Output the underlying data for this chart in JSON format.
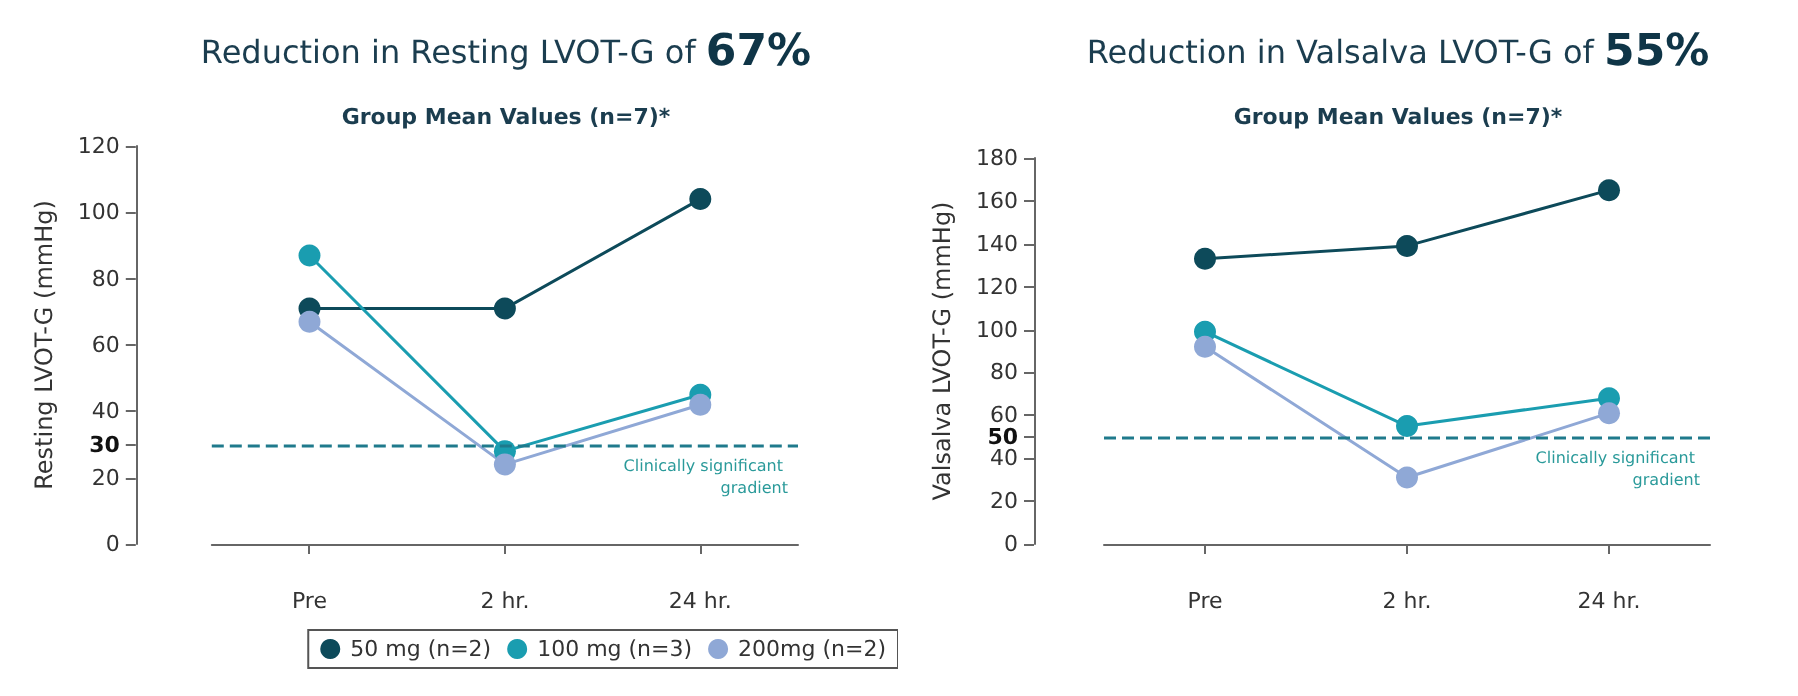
{
  "chart_data": [
    {
      "type": "line",
      "title": "Reduction in Resting LVOT-G of 67%",
      "subtitle": "Group Mean Values (n=7)*",
      "ylabel": "Resting LVOT-G (mmHg)",
      "categories": [
        "Pre",
        "2 hr.",
        "24 hr."
      ],
      "series": [
        {
          "name": "50 mg (n=2)",
          "color": "#0d4a5a",
          "values": [
            71,
            71,
            104
          ]
        },
        {
          "name": "100 mg (n=3)",
          "color": "#1a9db0",
          "values": [
            87,
            28,
            45
          ]
        },
        {
          "name": "200mg (n=2)",
          "color": "#8fa8d6",
          "values": [
            67,
            24,
            42
          ]
        }
      ],
      "ylim": [
        0,
        120
      ],
      "yticks": [
        0,
        20,
        30,
        40,
        60,
        80,
        100,
        120
      ],
      "ref_lines": [
        {
          "axis": "y",
          "value": 30,
          "label": "Clinically significant gradient",
          "color": "#1f7a8c",
          "line_style": "dashed"
        }
      ],
      "marker": "circle",
      "line_style": "solid",
      "grid": false,
      "legend": "bottom"
    },
    {
      "type": "line",
      "title": "Reduction in Valsalva LVOT-G of 55%",
      "subtitle": "Group Mean Values (n=7)*",
      "ylabel": "Valsalva LVOT-G (mmHg)",
      "categories": [
        "Pre",
        "2 hr.",
        "24 hr."
      ],
      "series": [
        {
          "color": "#0d4a5a",
          "values": [
            133,
            139,
            165
          ]
        },
        {
          "color": "#1a9db0",
          "values": [
            99,
            55,
            68
          ]
        },
        {
          "color": "#8fa8d6",
          "values": [
            92,
            31,
            61
          ]
        }
      ],
      "ylim": [
        0,
        180
      ],
      "yticks": [
        0,
        20,
        40,
        50,
        60,
        80,
        100,
        120,
        140,
        160,
        180
      ],
      "ref_lines": [
        {
          "axis": "y",
          "value": 50,
          "label": "Clinically significant gradient",
          "color": "#1f7a8c",
          "line_style": "dashed"
        }
      ],
      "marker": "circle",
      "line_style": "solid",
      "grid": false,
      "legend": false
    }
  ]
}
